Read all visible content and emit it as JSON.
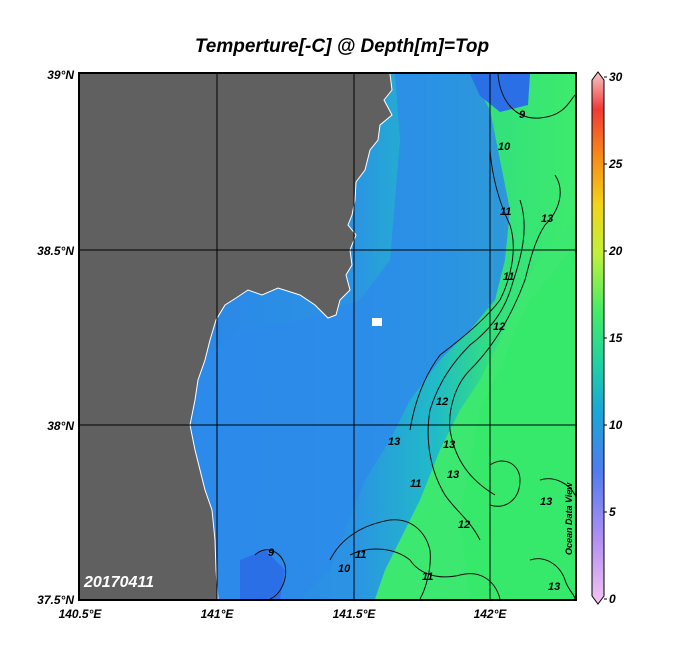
{
  "title": "Temperture[-C] @ Depth[m]=Top",
  "date_label": "20170411",
  "watermark": "Ocean Data View",
  "lat_labels": [
    "39°N",
    "38.5°N",
    "38°N",
    "37.5°N"
  ],
  "lon_labels": [
    "140.5°E",
    "141°E",
    "141.5°E",
    "142°E"
  ],
  "colorbar": {
    "min": 0,
    "max": 30,
    "ticks": [
      "30",
      "25",
      "20",
      "15",
      "10",
      "5",
      "0"
    ],
    "colors": [
      "#f6c3f3",
      "#8a6ff0",
      "#2a83ee",
      "#17c9b8",
      "#2fe86a",
      "#a8f03e",
      "#f2df1a",
      "#f79a17",
      "#f25038",
      "#f7c9c9"
    ]
  },
  "colors": {
    "land": "#606060",
    "coastal_water": "#2a8ee9",
    "offshore_water": "#3fe76f"
  },
  "contour_labels": [
    "9",
    "10",
    "11",
    "11",
    "12",
    "12",
    "13",
    "13",
    "13",
    "11",
    "13",
    "10",
    "11",
    "11",
    "12",
    "13",
    "9",
    "13"
  ]
}
